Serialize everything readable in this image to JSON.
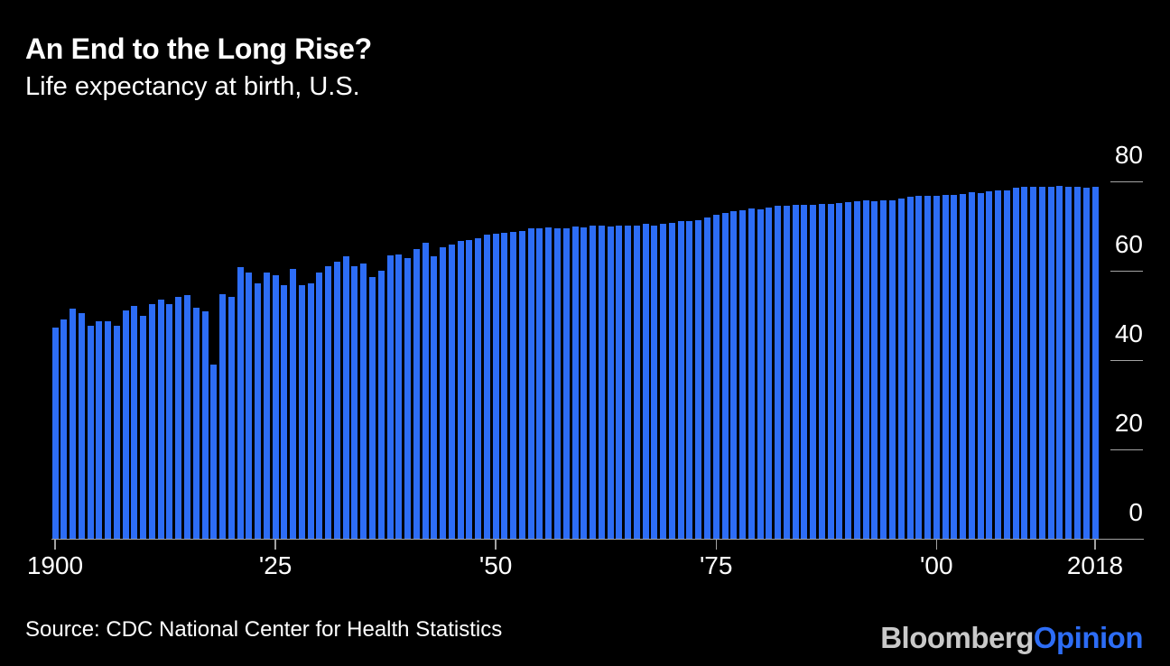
{
  "header": {
    "title": "An End to the Long Rise?",
    "subtitle": "Life expectancy at birth, U.S."
  },
  "footer": {
    "source": "Source: CDC National Center for Health Statistics",
    "brand": {
      "bloomberg": "Bloomberg",
      "opinion": "Opinion"
    }
  },
  "colors": {
    "background": "#000000",
    "bar": "#2d6df6",
    "axis": "#a3a3a3",
    "text": "#ffffff",
    "brand_gray": "#c9c9c9",
    "brand_blue": "#2d6df6"
  },
  "chart_data": {
    "type": "bar",
    "title": "An End to the Long Rise?",
    "subtitle": "Life expectancy at birth, U.S.",
    "xlabel": "",
    "ylabel": "",
    "first_year": 1900,
    "last_year": 2018,
    "ylim": [
      0,
      80
    ],
    "y_ticks": [
      0,
      20,
      40,
      60,
      80
    ],
    "grid": "off",
    "legend": "none",
    "axis_side": "right",
    "x_tick_labels": [
      {
        "year": 1900,
        "label": "1900"
      },
      {
        "year": 1925,
        "label": "'25"
      },
      {
        "year": 1950,
        "label": "'50"
      },
      {
        "year": 1975,
        "label": "'75"
      },
      {
        "year": 2000,
        "label": "'00"
      },
      {
        "year": 2018,
        "label": "2018"
      }
    ],
    "values": [
      47.3,
      49.1,
      51.5,
      50.5,
      47.6,
      48.7,
      48.7,
      47.6,
      51.1,
      52.1,
      50.0,
      52.6,
      53.5,
      52.5,
      54.2,
      54.5,
      51.7,
      50.9,
      39.1,
      54.7,
      54.1,
      60.8,
      59.6,
      57.2,
      59.7,
      59.0,
      56.7,
      60.4,
      56.8,
      57.1,
      59.7,
      61.1,
      62.1,
      63.3,
      61.1,
      61.7,
      58.5,
      60.0,
      63.5,
      63.7,
      62.9,
      64.8,
      66.2,
      63.3,
      65.2,
      65.9,
      66.7,
      66.8,
      67.2,
      68.0,
      68.2,
      68.4,
      68.6,
      68.8,
      69.6,
      69.6,
      69.7,
      69.5,
      69.6,
      69.9,
      69.7,
      70.2,
      70.1,
      69.9,
      70.2,
      70.2,
      70.2,
      70.5,
      70.2,
      70.5,
      70.8,
      71.1,
      71.2,
      71.4,
      72.0,
      72.6,
      72.9,
      73.3,
      73.5,
      73.9,
      73.7,
      74.1,
      74.5,
      74.6,
      74.7,
      74.7,
      74.7,
      74.9,
      74.9,
      75.1,
      75.4,
      75.5,
      75.8,
      75.5,
      75.7,
      75.8,
      76.1,
      76.5,
      76.7,
      76.7,
      76.8,
      76.9,
      76.9,
      77.1,
      77.5,
      77.4,
      77.7,
      77.9,
      78.0,
      78.5,
      78.7,
      78.7,
      78.8,
      78.8,
      78.9,
      78.7,
      78.7,
      78.6,
      78.7
    ]
  }
}
